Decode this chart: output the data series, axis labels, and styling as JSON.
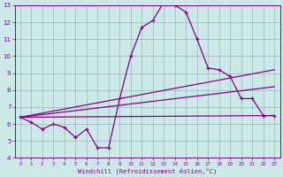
{
  "xlabel": "Windchill (Refroidissement éolien,°C)",
  "xlim": [
    -0.5,
    23.5
  ],
  "ylim": [
    4,
    13
  ],
  "yticks": [
    4,
    5,
    6,
    7,
    8,
    9,
    10,
    11,
    12,
    13
  ],
  "xticks": [
    0,
    1,
    2,
    3,
    4,
    5,
    6,
    7,
    8,
    9,
    10,
    11,
    12,
    13,
    14,
    15,
    16,
    17,
    18,
    19,
    20,
    21,
    22,
    23
  ],
  "bg_color": "#cce8e8",
  "line_color": "#880088",
  "grid_color": "#99bbbb",
  "line1_x": [
    0,
    1,
    2,
    3,
    4,
    5,
    6,
    7,
    8,
    9,
    10,
    11,
    12,
    13,
    14,
    15,
    16,
    17,
    18,
    19,
    20,
    21,
    22,
    23
  ],
  "line1_y": [
    6.4,
    6.1,
    5.7,
    6.0,
    5.8,
    5.2,
    5.7,
    4.6,
    4.6,
    7.5,
    10.0,
    11.7,
    12.1,
    13.2,
    13.0,
    12.6,
    11.0,
    9.3,
    9.2,
    8.8,
    7.5,
    7.5,
    6.5,
    6.5
  ],
  "line2_x": [
    0,
    23
  ],
  "line2_y": [
    6.4,
    6.5
  ],
  "line3_x": [
    0,
    23
  ],
  "line3_y": [
    6.4,
    8.2
  ],
  "line4_x": [
    0,
    23
  ],
  "line4_y": [
    6.4,
    9.2
  ]
}
